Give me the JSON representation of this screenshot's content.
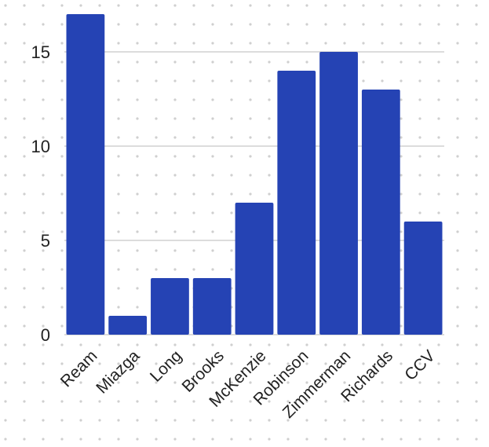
{
  "chart_data": {
    "type": "bar",
    "title": "",
    "xlabel": "",
    "ylabel": "",
    "categories": [
      "Ream",
      "Miazga",
      "Long",
      "Brooks",
      "McKenzie",
      "Robinson",
      "Zimmerman",
      "Richards",
      "CCV"
    ],
    "values": [
      17,
      1,
      3,
      3,
      7,
      14,
      15,
      13,
      6
    ],
    "ylim": [
      0,
      17
    ],
    "yticks": [
      0,
      5,
      10,
      15
    ],
    "grid": "horizontal",
    "bar_color": "#2543b4",
    "grid_color": "#b8b8b8",
    "background_pattern": "dotted",
    "dot_color": "#cfcfcf",
    "label_rotation_deg": -45
  }
}
